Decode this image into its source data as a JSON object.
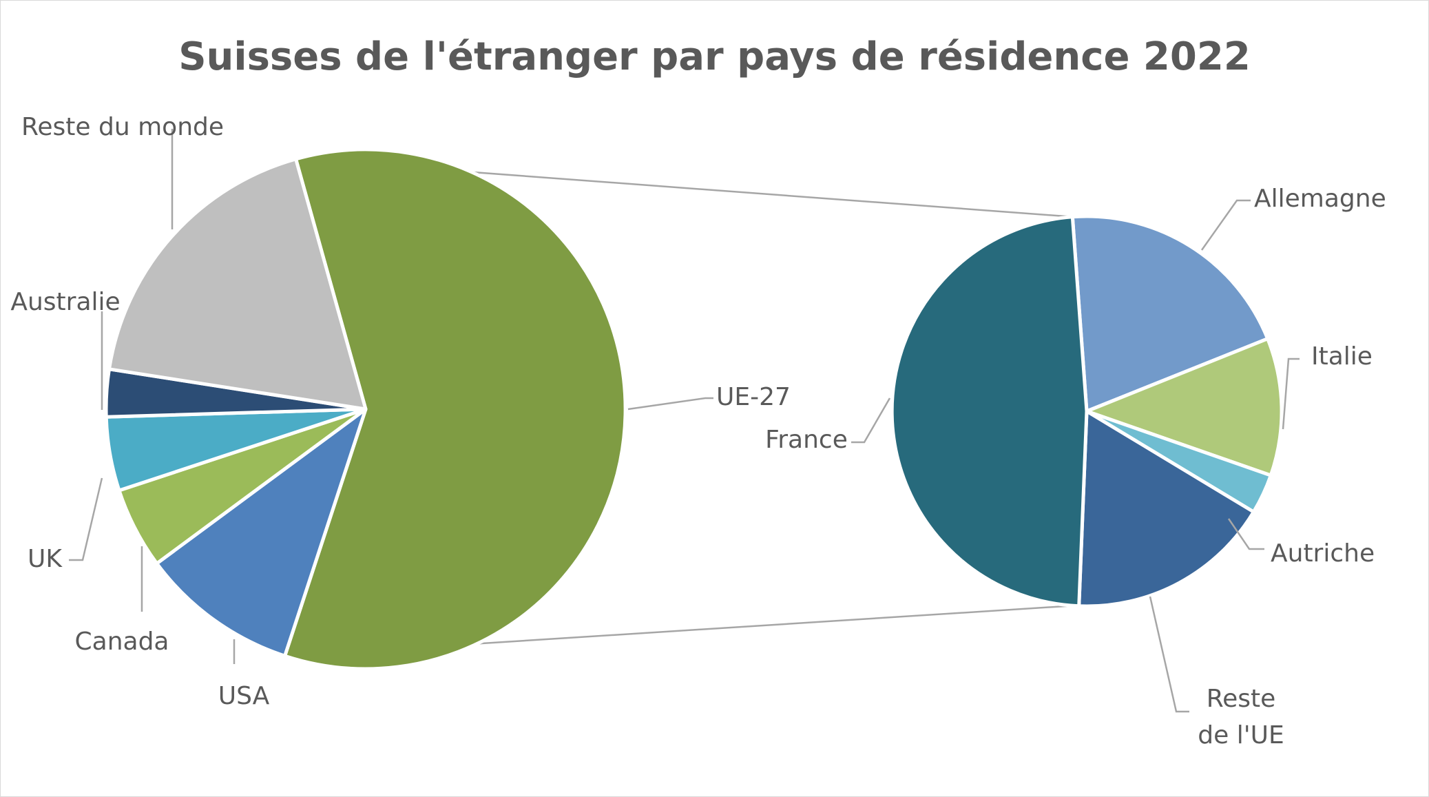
{
  "chart_data": {
    "type": "pie",
    "title": "Suisses de l'étranger par pays de résidence 2022",
    "main_pie": {
      "slices": [
        {
          "label": "UE-27",
          "value": 64.6,
          "color": "#7f9c43"
        },
        {
          "label": "USA",
          "value": 10.7,
          "color": "#4f81bd"
        },
        {
          "label": "Canada",
          "value": 5.5,
          "color": "#9bbb59"
        },
        {
          "label": "UK",
          "value": 5.0,
          "color": "#4bacc6"
        },
        {
          "label": "Australie",
          "value": 3.2,
          "color": "#2c4d75"
        },
        {
          "label": "Reste du monde",
          "value": 19.8,
          "color": "#bfbfbf"
        }
      ]
    },
    "detail_pie": {
      "of": "UE-27",
      "slices": [
        {
          "label": "Allemagne",
          "value": 20.1,
          "color": "#729aca"
        },
        {
          "label": "Italie",
          "value": 11.4,
          "color": "#afc97a"
        },
        {
          "label": "Autriche",
          "value": 3.3,
          "color": "#6fbdd1"
        },
        {
          "label": "Reste de l'UE",
          "value": 17.0,
          "color": "#3a6699"
        },
        {
          "label": "France",
          "value": 48.2,
          "color": "#276a7c"
        }
      ]
    }
  }
}
